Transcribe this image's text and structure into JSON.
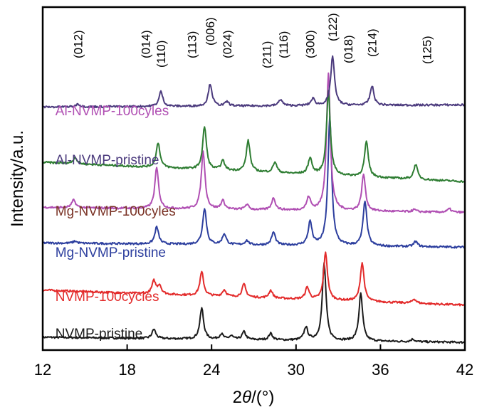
{
  "chart_data": {
    "type": "line",
    "title": "",
    "xlabel_prefix": "2",
    "xlabel_theta": "θ",
    "xlabel_suffix": "/(°)",
    "ylabel": "Intensity/a.u.",
    "xlim": [
      12,
      42
    ],
    "ylim": [
      0,
      8
    ],
    "x_ticks": [
      12,
      18,
      24,
      30,
      36,
      42
    ],
    "y_ticks_shown": false,
    "grid": false,
    "legend": "inline labels above each trace",
    "peak_labels": [
      {
        "text": "(012)",
        "x": 14.5
      },
      {
        "text": "(014)",
        "x": 19.3
      },
      {
        "text": "(110)",
        "x": 20.4
      },
      {
        "text": "(113)",
        "x": 22.6
      },
      {
        "text": "(006)",
        "x": 23.9
      },
      {
        "text": "(024)",
        "x": 25.1
      },
      {
        "text": "(211)",
        "x": 27.9
      },
      {
        "text": "(116)",
        "x": 29.1
      },
      {
        "text": "(300)",
        "x": 31.0
      },
      {
        "text": "(122)",
        "x": 32.6
      },
      {
        "text": "(018)",
        "x": 33.7
      },
      {
        "text": "(214)",
        "x": 35.4
      },
      {
        "text": "(125)",
        "x": 39.3
      }
    ],
    "series": [
      {
        "name": "NVMP-pristine",
        "label": "NVMP-pristine",
        "color": "#1a1a1a",
        "label_color": "#1a1a1a",
        "label_x": 12.9,
        "baseline": 0.3,
        "tilt": -0.12,
        "peaks": [
          [
            19.9,
            0.22
          ],
          [
            23.3,
            0.72
          ],
          [
            24.7,
            0.12
          ],
          [
            25.4,
            0.08
          ],
          [
            26.3,
            0.18
          ],
          [
            28.2,
            0.15
          ],
          [
            30.7,
            0.3
          ],
          [
            32.0,
            1.8
          ],
          [
            34.6,
            1.1
          ],
          [
            38.3,
            0.06
          ]
        ]
      },
      {
        "name": "NVMP-100cycles",
        "label": "NVMP-100cycles",
        "color": "#e32b2b",
        "label_color": "#e32b2b",
        "label_x": 12.9,
        "baseline": 1.4,
        "tilt": -0.35,
        "peaks": [
          [
            19.9,
            0.3
          ],
          [
            20.3,
            0.2
          ],
          [
            23.3,
            0.55
          ],
          [
            24.9,
            0.15
          ],
          [
            26.3,
            0.3
          ],
          [
            28.2,
            0.18
          ],
          [
            30.8,
            0.28
          ],
          [
            32.1,
            1.1
          ],
          [
            34.7,
            0.9
          ],
          [
            38.4,
            0.1
          ]
        ]
      },
      {
        "name": "Mg-NVMP-pristine",
        "label": "Mg-NVMP-pristine",
        "color": "#2c3e9e",
        "label_color": "#2c3e9e",
        "label_x": 12.9,
        "baseline": 2.5,
        "tilt": -0.1,
        "peaks": [
          [
            14.3,
            0.05
          ],
          [
            20.1,
            0.4
          ],
          [
            23.5,
            0.85
          ],
          [
            24.9,
            0.25
          ],
          [
            26.5,
            0.1
          ],
          [
            28.4,
            0.3
          ],
          [
            31.0,
            0.55
          ],
          [
            32.4,
            3.0
          ],
          [
            34.9,
            1.05
          ],
          [
            38.5,
            0.12
          ]
        ]
      },
      {
        "name": "Mg-NVMP-100cyles",
        "label": "Mg-NVMP-100cyles",
        "color": "#b04fb3",
        "label_color": "#7a3326",
        "label_x": 12.9,
        "baseline": 3.33,
        "tilt": -0.12,
        "peaks": [
          [
            14.2,
            0.18
          ],
          [
            20.1,
            0.95
          ],
          [
            23.4,
            1.35
          ],
          [
            24.8,
            0.2
          ],
          [
            26.5,
            0.12
          ],
          [
            28.4,
            0.28
          ],
          [
            30.9,
            0.3
          ],
          [
            32.3,
            3.2
          ],
          [
            34.8,
            0.85
          ],
          [
            38.4,
            0.05
          ],
          [
            40.9,
            0.08
          ]
        ]
      },
      {
        "name": "Al-NVMP-pristine",
        "label": "Al-NVMP-pristine",
        "color": "#2e7d32",
        "label_color": "#4b3a7d",
        "label_x": 12.9,
        "baseline": 4.38,
        "tilt": -0.45,
        "peaks": [
          [
            14.3,
            0.15
          ],
          [
            20.2,
            0.58
          ],
          [
            23.5,
            1.0
          ],
          [
            24.8,
            0.22
          ],
          [
            26.6,
            0.72
          ],
          [
            28.5,
            0.25
          ],
          [
            31.0,
            0.38
          ],
          [
            32.3,
            1.95
          ],
          [
            35.0,
            0.82
          ],
          [
            38.5,
            0.35
          ]
        ]
      },
      {
        "name": "Al-NVMP-100cyles",
        "label": "Al-NVMP-100cyles",
        "color": "#4b3a7d",
        "label_color": "#b04fb3",
        "label_x": 12.9,
        "baseline": 5.67,
        "tilt": 0.05,
        "peaks": [
          [
            14.5,
            0.07
          ],
          [
            20.4,
            0.35
          ],
          [
            23.9,
            0.52
          ],
          [
            25.1,
            0.1
          ],
          [
            28.9,
            0.15
          ],
          [
            31.2,
            0.16
          ],
          [
            32.6,
            1.15
          ],
          [
            35.4,
            0.45
          ]
        ]
      }
    ]
  }
}
